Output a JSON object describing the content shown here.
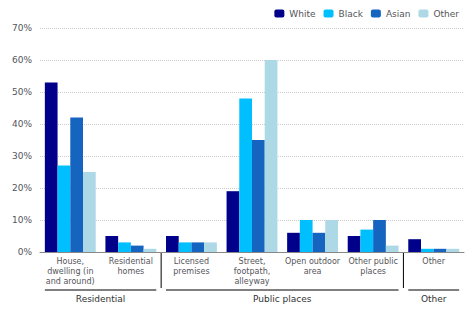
{
  "chart_data": {
    "type": "bar",
    "categories": [
      "House,\ndwelling (in\nand around)",
      "Residential\nhomes",
      "Licensed\npremises",
      "Street,\nfootpath,\nalleyway",
      "Open outdoor\narea",
      "Other public\nplaces",
      "Other"
    ],
    "groups": [
      {
        "label": "Residential",
        "categories": [
          "House,\ndwelling (in\nand around)",
          "Residential\nhomes"
        ]
      },
      {
        "label": "Public places",
        "categories": [
          "Licensed\npremises",
          "Street,\nfootpath,\nalleyway",
          "Open outdoor\narea",
          "Other public\nplaces"
        ]
      },
      {
        "label": "Other",
        "categories": [
          "Other"
        ]
      }
    ],
    "series": [
      {
        "name": "White",
        "color": "#00008B",
        "values": [
          53,
          5,
          5,
          19,
          6,
          5,
          4
        ]
      },
      {
        "name": "Black",
        "color": "#00BFFF",
        "values": [
          27,
          3,
          3,
          48,
          10,
          7,
          1
        ]
      },
      {
        "name": "Asian",
        "color": "#1565C0",
        "values": [
          42,
          2,
          3,
          35,
          6,
          10,
          1
        ]
      },
      {
        "name": "Other",
        "color": "#ADD8E6",
        "values": [
          25,
          1,
          3,
          60,
          10,
          2,
          1
        ]
      }
    ],
    "ylim": [
      0,
      70
    ],
    "yticks": [
      {
        "value": 0,
        "label": "0%"
      },
      {
        "value": 10,
        "label": "10%"
      },
      {
        "value": 20,
        "label": "20%"
      },
      {
        "value": 30,
        "label": "30%"
      },
      {
        "value": 40,
        "label": "40%"
      },
      {
        "value": 50,
        "label": "50%"
      },
      {
        "value": 60,
        "label": "60%"
      },
      {
        "value": 70,
        "label": "70%"
      }
    ],
    "grid": true,
    "legend": "upper right"
  }
}
